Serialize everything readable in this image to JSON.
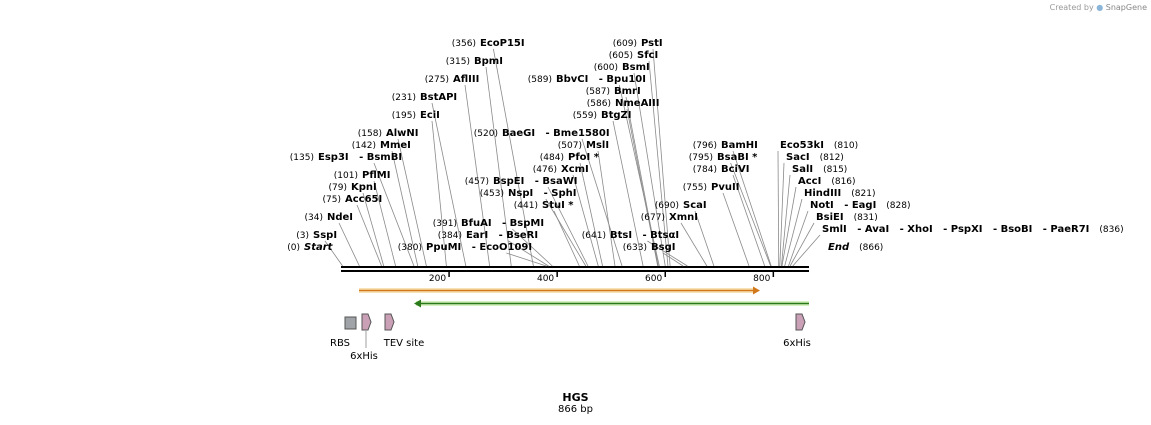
{
  "credit": {
    "prefix": "Created by",
    "brand": "SnapGene"
  },
  "sequence": {
    "name": "HGS",
    "length_label": "866 bp",
    "length": 866
  },
  "ruler_ticks": [
    "200",
    "400",
    "600",
    "800"
  ],
  "sites": [
    {
      "pos": "(0)",
      "name": "Start",
      "italic": true
    },
    {
      "pos": "(3)",
      "name": "SspI"
    },
    {
      "pos": "(34)",
      "name": "NdeI"
    },
    {
      "pos": "(75)",
      "name": "Acc65I"
    },
    {
      "pos": "(79)",
      "name": "KpnI"
    },
    {
      "pos": "(101)",
      "name": "PflMI"
    },
    {
      "pos": "(135)",
      "name": "Esp3I",
      "extra": "- BsmBI"
    },
    {
      "pos": "(142)",
      "name": "MmeI"
    },
    {
      "pos": "(158)",
      "name": "AlwNI"
    },
    {
      "pos": "(195)",
      "name": "EciI"
    },
    {
      "pos": "(231)",
      "name": "BstAPI"
    },
    {
      "pos": "(275)",
      "name": "AflIII"
    },
    {
      "pos": "(315)",
      "name": "BpmI"
    },
    {
      "pos": "(356)",
      "name": "EcoP15I"
    },
    {
      "pos": "(380)",
      "name": "PpuMI",
      "extra": "- EcoO109I"
    },
    {
      "pos": "(384)",
      "name": "EarI",
      "extra": "- BseRI"
    },
    {
      "pos": "(391)",
      "name": "BfuAI",
      "extra": "- BspMI"
    },
    {
      "pos": "(441)",
      "name": "StuI *"
    },
    {
      "pos": "(453)",
      "name": "NspI",
      "extra": "- SphI"
    },
    {
      "pos": "(457)",
      "name": "BspEI",
      "extra": "- BsaWI"
    },
    {
      "pos": "(476)",
      "name": "XcmI"
    },
    {
      "pos": "(484)",
      "name": "PfoI *"
    },
    {
      "pos": "(507)",
      "name": "MslI"
    },
    {
      "pos": "(520)",
      "name": "BaeGI",
      "extra": "- Bme1580I"
    },
    {
      "pos": "(559)",
      "name": "BtgZI"
    },
    {
      "pos": "(586)",
      "name": "NmeAIII"
    },
    {
      "pos": "(587)",
      "name": "BmrI"
    },
    {
      "pos": "(589)",
      "name": "BbvCI",
      "extra": "- Bpu10I"
    },
    {
      "pos": "(600)",
      "name": "BsmI"
    },
    {
      "pos": "(605)",
      "name": "SfcI"
    },
    {
      "pos": "(609)",
      "name": "PstI"
    },
    {
      "pos": "(633)",
      "name": "BsgI"
    },
    {
      "pos": "(641)",
      "name": "BtsI",
      "extra": "- BtsαI"
    },
    {
      "pos": "(677)",
      "name": "XmnI"
    },
    {
      "pos": "(690)",
      "name": "ScaI"
    },
    {
      "pos": "(755)",
      "name": "PvuII"
    },
    {
      "pos": "(784)",
      "name": "BciVI"
    },
    {
      "pos": "(795)",
      "name": "BsaBI *"
    },
    {
      "pos": "(796)",
      "name": "BamHI"
    },
    {
      "pos": "(810)",
      "name": "Eco53kI"
    },
    {
      "pos": "(812)",
      "name": "SacI"
    },
    {
      "pos": "(815)",
      "name": "SalI"
    },
    {
      "pos": "(816)",
      "name": "AccI"
    },
    {
      "pos": "(821)",
      "name": "HindIII"
    },
    {
      "pos": "(828)",
      "name": "NotI",
      "extra": "- EagI"
    },
    {
      "pos": "(831)",
      "name": "BsiEI"
    },
    {
      "pos": "(836)",
      "name": "SmlI",
      "extra": "- AvaI   - XhoI   - PspXI   - BsoBI   - PaeR7I"
    },
    {
      "pos": "(866)",
      "name": "End",
      "italic": true
    }
  ],
  "features": [
    {
      "name": "RBS",
      "color": "#a0a4a8",
      "shape": "square"
    },
    {
      "name": "6xHis",
      "color": "#c9a0b6",
      "shape": "arrow"
    },
    {
      "name": "TEV site",
      "color": "#c9a0b6",
      "shape": "arrow"
    },
    {
      "name": "6xHis",
      "color": "#c9a0b6",
      "shape": "arrow"
    }
  ],
  "orfs": [
    {
      "direction": "forward",
      "color": "#e8b060"
    },
    {
      "direction": "reverse",
      "color": "#7ed04a"
    }
  ]
}
